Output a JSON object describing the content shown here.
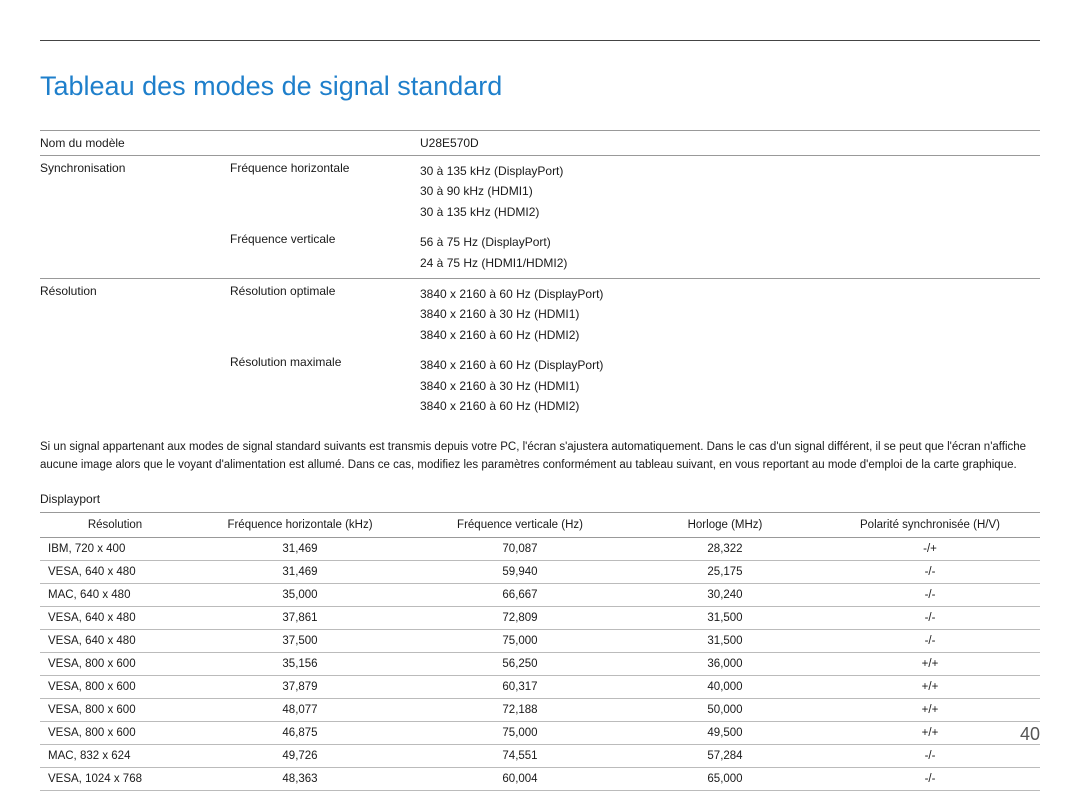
{
  "title": "Tableau des modes de signal standard",
  "colors": {
    "heading": "#1e7fcb",
    "text": "#1a1a1a",
    "divider": "#999999",
    "row_border": "#bbbbbb",
    "bg": "#ffffff"
  },
  "spec": {
    "model_label": "Nom du modèle",
    "model_value": "U28E570D",
    "sync_label": "Synchronisation",
    "hfreq_label": "Fréquence horizontale",
    "hfreq_lines": [
      "30 à 135 kHz (DisplayPort)",
      "30 à 90 kHz (HDMI1)",
      "30 à 135 kHz (HDMI2)"
    ],
    "vfreq_label": "Fréquence verticale",
    "vfreq_lines": [
      "56 à 75 Hz (DisplayPort)",
      "24 à 75 Hz (HDMI1/HDMI2)"
    ],
    "res_label": "Résolution",
    "res_opt_label": "Résolution optimale",
    "res_opt_lines": [
      "3840 x 2160 à 60 Hz (DisplayPort)",
      "3840 x 2160 à 30 Hz (HDMI1)",
      "3840 x 2160 à 60 Hz (HDMI2)"
    ],
    "res_max_label": "Résolution maximale",
    "res_max_lines": [
      "3840 x 2160 à 60 Hz (DisplayPort)",
      "3840 x 2160 à 30 Hz (HDMI1)",
      "3840 x 2160 à 60 Hz (HDMI2)"
    ]
  },
  "note": "Si un signal appartenant aux modes de signal standard suivants est transmis depuis votre PC, l'écran s'ajustera automatiquement. Dans le cas d'un signal différent, il se peut que l'écran n'affiche aucune image alors que le voyant d'alimentation est allumé. Dans ce cas, modifiez les paramètres conformément au tableau suivant, en vous reportant au mode d'emploi de la carte graphique.",
  "section_label": "Displayport",
  "mode_table": {
    "columns": [
      "Résolution",
      "Fréquence horizontale (kHz)",
      "Fréquence verticale (Hz)",
      "Horloge (MHz)",
      "Polarité synchronisée (H/V)"
    ],
    "rows": [
      [
        "IBM, 720 x 400",
        "31,469",
        "70,087",
        "28,322",
        "-/+"
      ],
      [
        "VESA, 640 x 480",
        "31,469",
        "59,940",
        "25,175",
        "-/-"
      ],
      [
        "MAC, 640 x 480",
        "35,000",
        "66,667",
        "30,240",
        "-/-"
      ],
      [
        "VESA, 640 x 480",
        "37,861",
        "72,809",
        "31,500",
        "-/-"
      ],
      [
        "VESA, 640 x 480",
        "37,500",
        "75,000",
        "31,500",
        "-/-"
      ],
      [
        "VESA, 800 x 600",
        "35,156",
        "56,250",
        "36,000",
        "+/+"
      ],
      [
        "VESA, 800 x 600",
        "37,879",
        "60,317",
        "40,000",
        "+/+"
      ],
      [
        "VESA, 800 x 600",
        "48,077",
        "72,188",
        "50,000",
        "+/+"
      ],
      [
        "VESA, 800 x 600",
        "46,875",
        "75,000",
        "49,500",
        "+/+"
      ],
      [
        "MAC, 832 x 624",
        "49,726",
        "74,551",
        "57,284",
        "-/-"
      ],
      [
        "VESA, 1024 x 768",
        "48,363",
        "60,004",
        "65,000",
        "-/-"
      ]
    ]
  },
  "page_number": "40"
}
